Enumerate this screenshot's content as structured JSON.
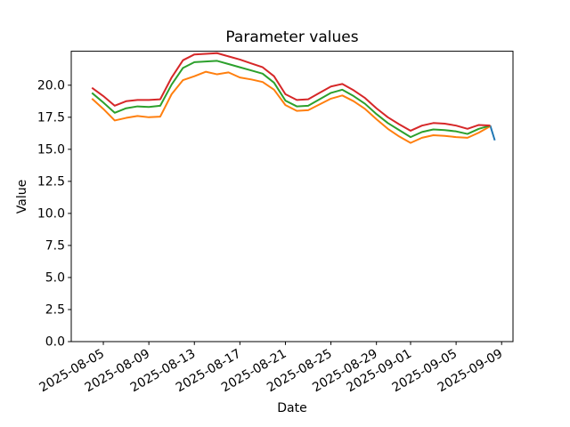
{
  "figure": {
    "title": "Parameter values",
    "xlabel": "Date",
    "ylabel": "Value"
  },
  "chart_data": {
    "type": "line",
    "title": "Parameter values",
    "xlabel": "Date",
    "ylabel": "Value",
    "grid": false,
    "legend": null,
    "start_date": "2025-08-04",
    "dates": [
      "2025-08-04",
      "2025-08-05",
      "2025-08-06",
      "2025-08-07",
      "2025-08-08",
      "2025-08-09",
      "2025-08-10",
      "2025-08-11",
      "2025-08-12",
      "2025-08-13",
      "2025-08-14",
      "2025-08-15",
      "2025-08-16",
      "2025-08-17",
      "2025-08-18",
      "2025-08-19",
      "2025-08-20",
      "2025-08-21",
      "2025-08-22",
      "2025-08-23",
      "2025-08-24",
      "2025-08-25",
      "2025-08-26",
      "2025-08-27",
      "2025-08-28",
      "2025-08-29",
      "2025-08-30",
      "2025-08-31",
      "2025-09-01",
      "2025-09-02",
      "2025-09-03",
      "2025-09-04",
      "2025-09-05",
      "2025-09-06",
      "2025-09-07",
      "2025-09-08"
    ],
    "xlim": [
      -1.82,
      37.0
    ],
    "ylim": [
      0,
      22.65
    ],
    "x_tick_days": [
      1,
      5,
      9,
      13,
      17,
      21,
      25,
      28,
      32,
      36
    ],
    "x_tick_labels": [
      "2025-08-05",
      "2025-08-09",
      "2025-08-13",
      "2025-08-17",
      "2025-08-21",
      "2025-08-25",
      "2025-08-29",
      "2025-09-01",
      "2025-09-05",
      "2025-09-09"
    ],
    "y_tick_values": [
      0,
      2.5,
      5,
      7.5,
      10,
      12.5,
      15,
      17.5,
      20
    ],
    "y_tick_labels": [
      "0.0",
      "2.5",
      "5.0",
      "7.5",
      "10.0",
      "12.5",
      "15.0",
      "17.5",
      "20.0"
    ],
    "series": [
      {
        "name": "blue",
        "color": "#1f77b4",
        "points": [
          [
            35,
            16.85
          ],
          [
            35.4,
            15.7
          ]
        ]
      },
      {
        "name": "orange",
        "color": "#ff7f0e",
        "values": [
          18.95,
          18.15,
          17.25,
          17.45,
          17.6,
          17.5,
          17.55,
          19.3,
          20.4,
          20.7,
          21.05,
          20.85,
          21.0,
          20.6,
          20.45,
          20.25,
          19.65,
          18.45,
          18.0,
          18.05,
          18.5,
          18.95,
          19.2,
          18.75,
          18.15,
          17.35,
          16.6,
          16.0,
          15.5,
          15.9,
          16.1,
          16.05,
          15.95,
          15.9,
          16.3,
          16.8
        ]
      },
      {
        "name": "green",
        "color": "#2ca02c",
        "values": [
          19.4,
          18.65,
          17.85,
          18.2,
          18.35,
          18.3,
          18.4,
          20.05,
          21.35,
          21.8,
          21.85,
          21.9,
          21.65,
          21.4,
          21.15,
          20.9,
          20.2,
          18.8,
          18.35,
          18.4,
          18.9,
          19.4,
          19.65,
          19.15,
          18.55,
          17.75,
          17.05,
          16.5,
          15.95,
          16.35,
          16.55,
          16.5,
          16.4,
          16.2,
          16.6,
          16.85
        ]
      },
      {
        "name": "red",
        "color": "#d62728",
        "values": [
          19.8,
          19.15,
          18.4,
          18.75,
          18.85,
          18.85,
          18.9,
          20.6,
          21.95,
          22.4,
          22.45,
          22.5,
          22.25,
          22.0,
          21.7,
          21.4,
          20.7,
          19.3,
          18.85,
          18.9,
          19.4,
          19.9,
          20.1,
          19.6,
          19.0,
          18.2,
          17.5,
          16.95,
          16.45,
          16.85,
          17.05,
          17.0,
          16.85,
          16.6,
          16.9,
          16.85
        ]
      }
    ]
  }
}
